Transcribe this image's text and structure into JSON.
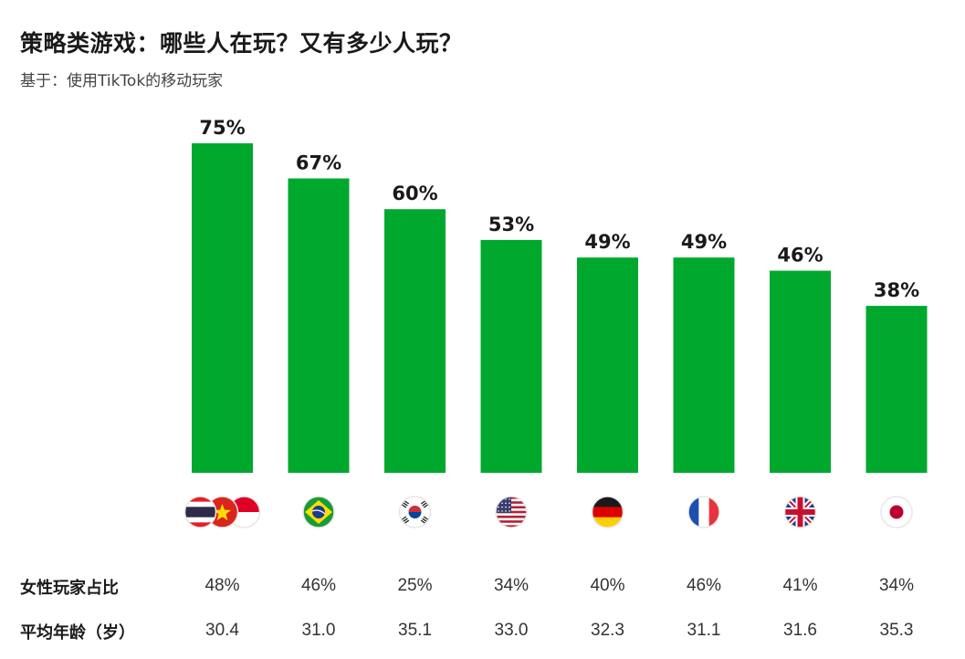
{
  "title": "策略类游戏：哪些人在玩？又有多少人玩？",
  "subtitle": "基于：使用TikTok的移动玩家",
  "colors": {
    "bar": "#00a82d"
  },
  "chart_data": {
    "type": "bar",
    "title": "策略类游戏：哪些人在玩？又有多少人玩？",
    "subtitle": "基于：使用TikTok的移动玩家",
    "categories": [
      "thailand-vietnam-indonesia-flags",
      "brazil-flag",
      "south-korea-flag",
      "usa-flag",
      "germany-flag",
      "france-flag",
      "uk-flag",
      "japan-flag"
    ],
    "values": [
      75,
      67,
      60,
      53,
      49,
      49,
      46,
      38
    ],
    "value_labels": [
      "75%",
      "67%",
      "60%",
      "53%",
      "49%",
      "49%",
      "46%",
      "38%"
    ],
    "ylim": [
      0,
      80
    ],
    "grid": false,
    "legend": "none"
  },
  "table": {
    "rows": [
      {
        "label": "女性玩家占比",
        "values": [
          "48%",
          "46%",
          "25%",
          "34%",
          "40%",
          "46%",
          "41%",
          "34%"
        ]
      },
      {
        "label": "平均年龄（岁）",
        "values": [
          "30.4",
          "31.0",
          "35.1",
          "33.0",
          "32.3",
          "31.1",
          "31.6",
          "35.3"
        ]
      }
    ]
  }
}
